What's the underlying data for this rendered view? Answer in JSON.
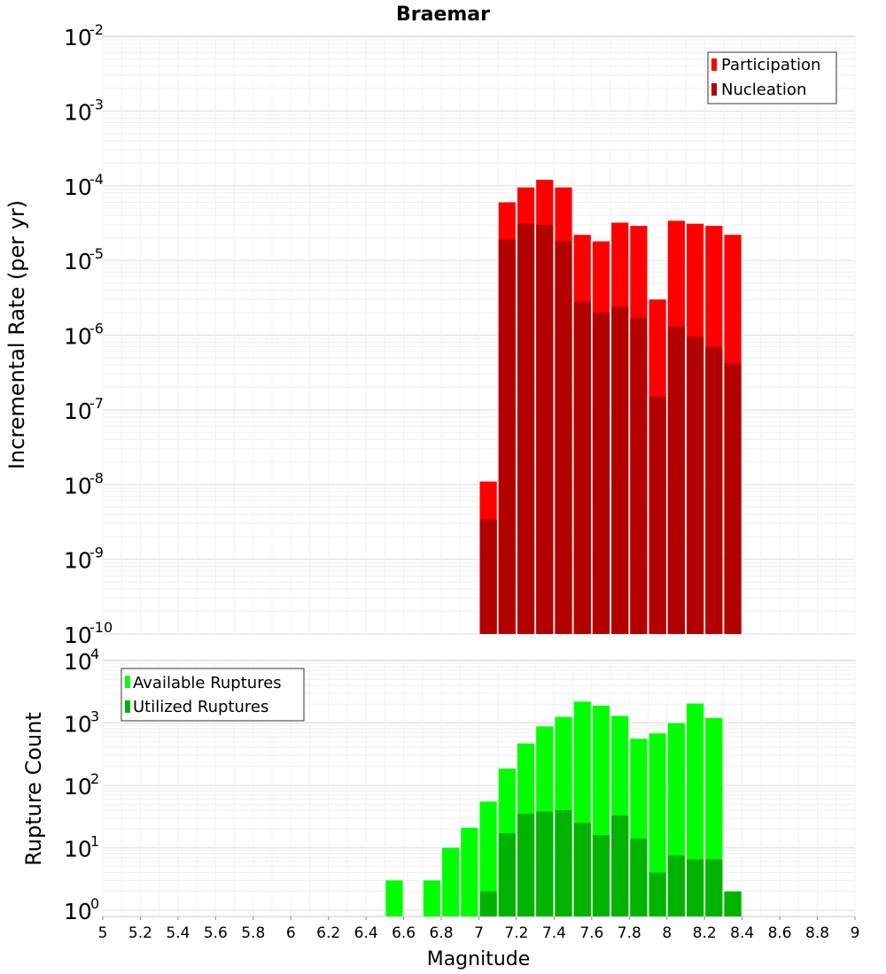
{
  "chart_data": [
    {
      "type": "bar",
      "title": "Braemar",
      "xlabel": "Magnitude",
      "ylabel": "Incremental Rate (per yr)",
      "yscale": "log",
      "ylim_exp": [
        -10,
        -2
      ],
      "ytick_base": "10",
      "ytick_exponents": [
        "-10",
        "-9",
        "-8",
        "-7",
        "-6",
        "-5",
        "-4",
        "-3",
        "-2"
      ],
      "legend_position": "top-right",
      "colors": {
        "participation": "#ff0000",
        "nucleation": "#b30000"
      },
      "x": [
        7.05,
        7.15,
        7.25,
        7.35,
        7.45,
        7.55,
        7.65,
        7.75,
        7.85,
        7.95,
        8.05,
        8.15,
        8.25,
        8.35
      ],
      "series": [
        {
          "name": "Participation",
          "values": [
            1.1e-08,
            6e-05,
            9.5e-05,
            0.00012,
            9.5e-05,
            2.2e-05,
            1.8e-05,
            3.2e-05,
            2.9e-05,
            3e-06,
            3.4e-05,
            3.1e-05,
            2.9e-05,
            2.2e-05
          ]
        },
        {
          "name": "Nucleation",
          "values": [
            3.4e-09,
            1.9e-05,
            3.1e-05,
            3e-05,
            1.8e-05,
            2.8e-06,
            2e-06,
            2.4e-06,
            1.7e-06,
            1.5e-07,
            1.3e-06,
            9.5e-07,
            7e-07,
            4.2e-07
          ]
        }
      ]
    },
    {
      "type": "bar",
      "xlabel": "Magnitude",
      "ylabel": "Rupture Count",
      "yscale": "log",
      "ylim_exp": [
        -0.1,
        4
      ],
      "xlim": [
        5,
        9
      ],
      "ytick_base": "10",
      "ytick_exponents": [
        "0",
        "1",
        "2",
        "3",
        "4"
      ],
      "xticks": [
        "5",
        "5.2",
        "5.4",
        "5.6",
        "5.8",
        "6",
        "6.2",
        "6.4",
        "6.6",
        "6.8",
        "7",
        "7.2",
        "7.4",
        "7.6",
        "7.8",
        "8",
        "8.2",
        "8.4",
        "8.6",
        "8.8",
        "9"
      ],
      "legend_position": "top-left",
      "colors": {
        "available": "#00ff00",
        "utilized": "#00b300"
      },
      "x": [
        6.55,
        6.75,
        6.85,
        6.95,
        7.05,
        7.15,
        7.25,
        7.35,
        7.45,
        7.55,
        7.65,
        7.75,
        7.85,
        7.95,
        8.05,
        8.15,
        8.25,
        8.35
      ],
      "series": [
        {
          "name": "Available Ruptures",
          "values": [
            3,
            3,
            10,
            21,
            55,
            185,
            470,
            880,
            1250,
            2200,
            1900,
            1300,
            560,
            680,
            990,
            2050,
            1200,
            2
          ]
        },
        {
          "name": "Utilized Ruptures",
          "values": [
            0,
            0,
            0,
            0,
            2,
            17,
            35,
            38,
            40,
            25,
            16,
            33,
            14,
            4,
            7.5,
            6.5,
            6.5,
            2
          ]
        }
      ]
    }
  ]
}
